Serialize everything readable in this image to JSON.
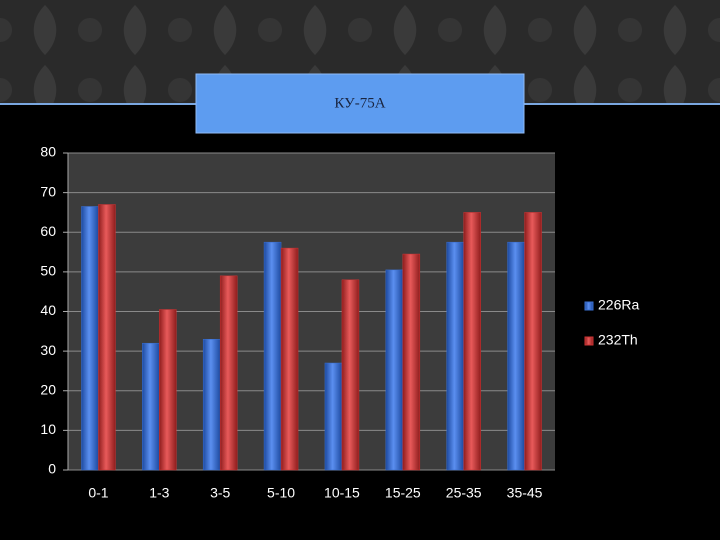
{
  "chart_data": {
    "type": "bar",
    "title": "КУ-75А",
    "categories": [
      "0-1",
      "1-3",
      "3-5",
      "5-10",
      "10-15",
      "15-25",
      "25-35",
      "35-45"
    ],
    "series": [
      {
        "name": "226Ra",
        "color": "#3a6fd0",
        "values": [
          66.5,
          32,
          33,
          57.5,
          27,
          50.5,
          57.5,
          57.5
        ]
      },
      {
        "name": "232Th",
        "color": "#cc3333",
        "values": [
          67,
          40.5,
          49,
          56,
          48,
          54.5,
          65,
          65
        ]
      }
    ],
    "ylim": [
      0,
      80
    ],
    "yticks": [
      0,
      10,
      20,
      30,
      40,
      50,
      60,
      70,
      80
    ],
    "grid": true
  }
}
